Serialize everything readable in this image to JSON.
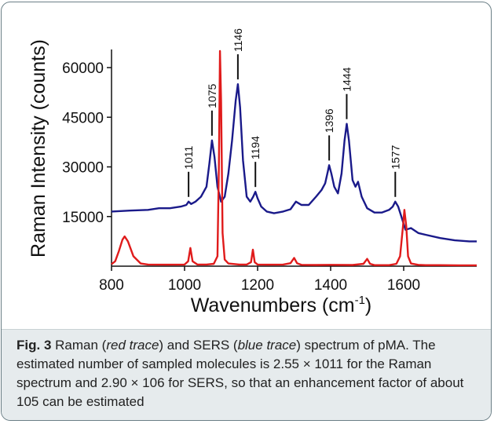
{
  "chart_data": {
    "type": "line",
    "title": "",
    "xlabel": "Wavenumbers (cm",
    "xlabel_sup": "-1",
    "xlabel_close": ")",
    "ylabel": "Raman Intensity (counts)",
    "xlim": [
      800,
      1800
    ],
    "ylim": [
      0,
      65000
    ],
    "x_ticks": [
      800,
      1000,
      1200,
      1400,
      1600
    ],
    "y_ticks": [
      15000,
      30000,
      45000,
      60000
    ],
    "grid": false,
    "series": [
      {
        "color": "#1a1a8a",
        "x": [
          800,
          850,
          900,
          930,
          960,
          990,
          1005,
          1011,
          1018,
          1030,
          1045,
          1060,
          1068,
          1075,
          1082,
          1090,
          1100,
          1110,
          1120,
          1130,
          1140,
          1146,
          1152,
          1160,
          1170,
          1180,
          1188,
          1194,
          1200,
          1210,
          1225,
          1245,
          1270,
          1290,
          1305,
          1320,
          1340,
          1360,
          1375,
          1385,
          1392,
          1396,
          1402,
          1410,
          1420,
          1430,
          1438,
          1444,
          1450,
          1460,
          1468,
          1475,
          1485,
          1500,
          1520,
          1540,
          1560,
          1570,
          1577,
          1585,
          1595,
          1605,
          1620,
          1640,
          1660,
          1700,
          1740,
          1780,
          1800
        ],
        "y": [
          16500,
          16800,
          17000,
          17500,
          17500,
          18000,
          18500,
          19500,
          18800,
          19500,
          21000,
          24000,
          31000,
          38000,
          33000,
          24000,
          19500,
          21000,
          28000,
          38000,
          50000,
          55000,
          48000,
          32000,
          21000,
          19500,
          21000,
          22500,
          20500,
          18000,
          16500,
          16000,
          16500,
          17200,
          19500,
          18500,
          18500,
          21000,
          23000,
          25000,
          28500,
          30500,
          28000,
          24000,
          22000,
          28000,
          38000,
          43000,
          38000,
          26000,
          24000,
          25500,
          21000,
          17500,
          16200,
          16200,
          17000,
          18000,
          19500,
          18000,
          14500,
          11000,
          11500,
          10000,
          9500,
          8500,
          7800,
          7500,
          7500
        ]
      },
      {
        "color": "#e01b1b",
        "x": [
          800,
          810,
          820,
          830,
          836,
          845,
          860,
          880,
          900,
          950,
          1000,
          1010,
          1016,
          1022,
          1035,
          1060,
          1080,
          1090,
          1094,
          1097,
          1100,
          1104,
          1110,
          1120,
          1150,
          1170,
          1182,
          1187,
          1192,
          1200,
          1230,
          1270,
          1290,
          1300,
          1308,
          1320,
          1360,
          1400,
          1460,
          1490,
          1500,
          1508,
          1520,
          1560,
          1580,
          1590,
          1598,
          1602,
          1607,
          1612,
          1620,
          1640,
          1660,
          1700,
          1750,
          1800
        ],
        "y": [
          600,
          1500,
          4500,
          8000,
          9000,
          7500,
          3000,
          800,
          500,
          450,
          500,
          1500,
          5500,
          1500,
          500,
          500,
          700,
          3000,
          30000,
          65000,
          50000,
          10000,
          2000,
          800,
          500,
          500,
          1200,
          5000,
          1200,
          500,
          450,
          500,
          900,
          2500,
          900,
          400,
          350,
          400,
          350,
          700,
          2200,
          700,
          300,
          300,
          700,
          3000,
          12000,
          17000,
          12000,
          3000,
          800,
          400,
          300,
          300,
          250,
          250
        ]
      }
    ],
    "annotations": [
      {
        "label": "1011",
        "x": 1011,
        "y": 19500
      },
      {
        "label": "1075",
        "x": 1075,
        "y": 38000
      },
      {
        "label": "1146",
        "x": 1146,
        "y": 55000
      },
      {
        "label": "1194",
        "x": 1194,
        "y": 22500
      },
      {
        "label": "1396",
        "x": 1396,
        "y": 30500
      },
      {
        "label": "1444",
        "x": 1444,
        "y": 43000
      },
      {
        "label": "1577",
        "x": 1577,
        "y": 19500
      }
    ]
  },
  "caption": {
    "label": "Fig. 3",
    "t1": " Raman (",
    "red": "red trace",
    "t2": ") and SERS (",
    "blue": "blue trace",
    "t3": ") spectrum of pMA. The estimated number of sampled molecules is 2.55 × 1011 for the Raman spectrum and 2.90 × 106 for SERS, so that an enhancement factor of about 105 can be estimated"
  }
}
